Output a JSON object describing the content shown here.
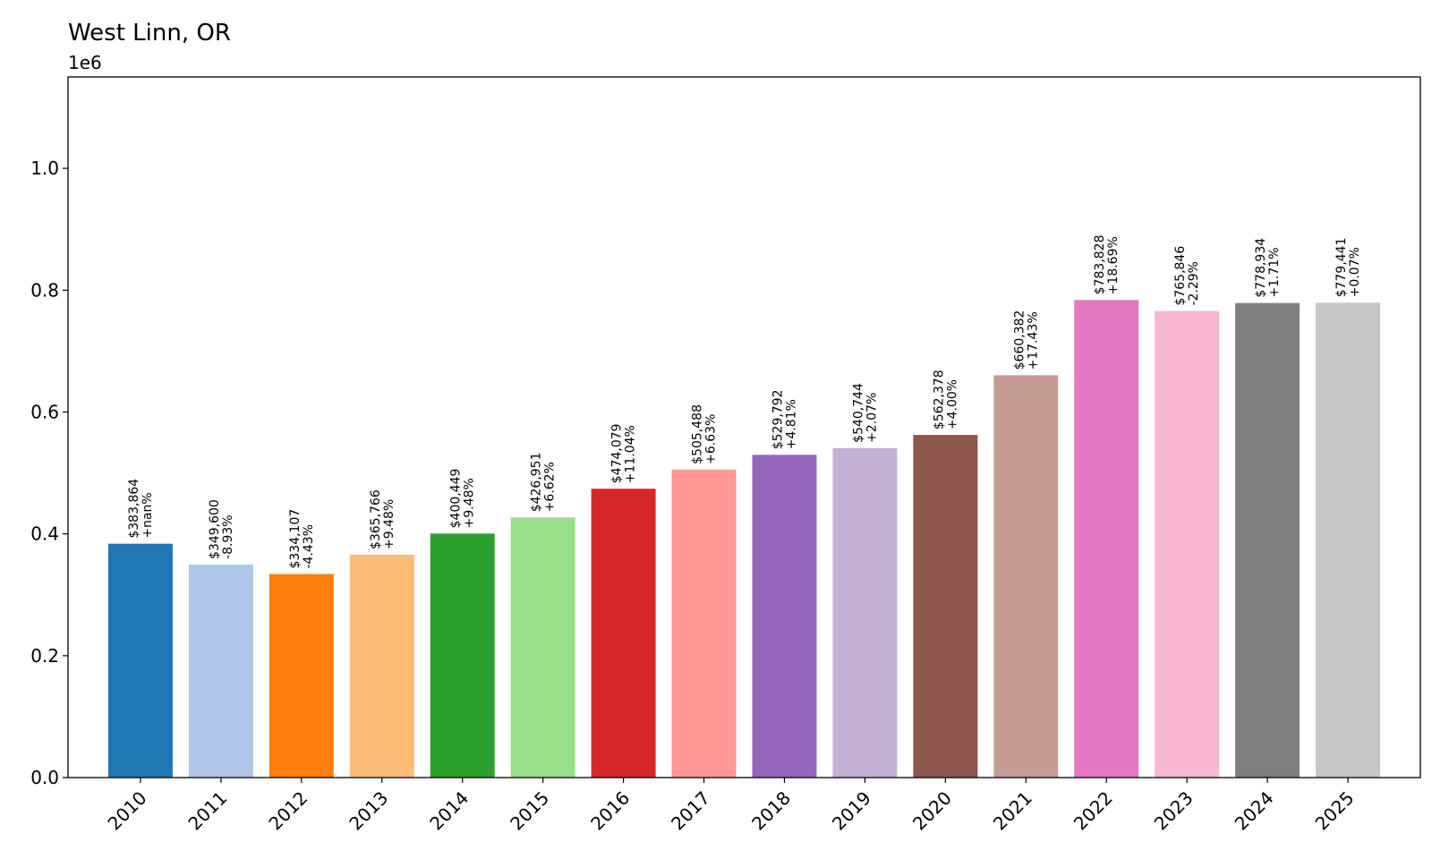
{
  "chart_data": {
    "type": "bar",
    "title": "West Linn, OR",
    "y_offset_label": "1e6",
    "xlabel": "",
    "ylabel": "",
    "ylim": [
      0,
      1.15
    ],
    "yticks": [
      0.0,
      0.2,
      0.4,
      0.6,
      0.8,
      1.0
    ],
    "ytick_labels": [
      "0.0",
      "0.2",
      "0.4",
      "0.6",
      "0.8",
      "1.0"
    ],
    "grid": false,
    "categories": [
      "2010",
      "2011",
      "2012",
      "2013",
      "2014",
      "2015",
      "2016",
      "2017",
      "2018",
      "2019",
      "2020",
      "2021",
      "2022",
      "2023",
      "2024",
      "2025"
    ],
    "values": [
      383864,
      349600,
      334107,
      365766,
      400449,
      426951,
      474079,
      505488,
      529792,
      540744,
      562378,
      660382,
      783828,
      765846,
      778934,
      779441
    ],
    "value_labels": [
      "$383,864",
      "$349,600",
      "$334,107",
      "$365,766",
      "$400,449",
      "$426,951",
      "$474,079",
      "$505,488",
      "$529,792",
      "$540,744",
      "$562,378",
      "$660,382",
      "$783,828",
      "$765,846",
      "$778,934",
      "$779,441"
    ],
    "change_labels": [
      "+nan%",
      "-8.93%",
      "-4.43%",
      "+9.48%",
      "+9.48%",
      "+6.62%",
      "+11.04%",
      "+6.63%",
      "+4.81%",
      "+2.07%",
      "+4.00%",
      "+17.43%",
      "+18.69%",
      "-2.29%",
      "+1.71%",
      "+0.07%"
    ],
    "colors": [
      "#1f77b4",
      "#aec7e8",
      "#ff7f0e",
      "#ffbb78",
      "#2ca02c",
      "#98df8a",
      "#d62728",
      "#ff9896",
      "#9467bd",
      "#c5b0d5",
      "#8c564b",
      "#c49c94",
      "#e377c2",
      "#f7b6d2",
      "#7f7f7f",
      "#c7c7c7"
    ]
  }
}
